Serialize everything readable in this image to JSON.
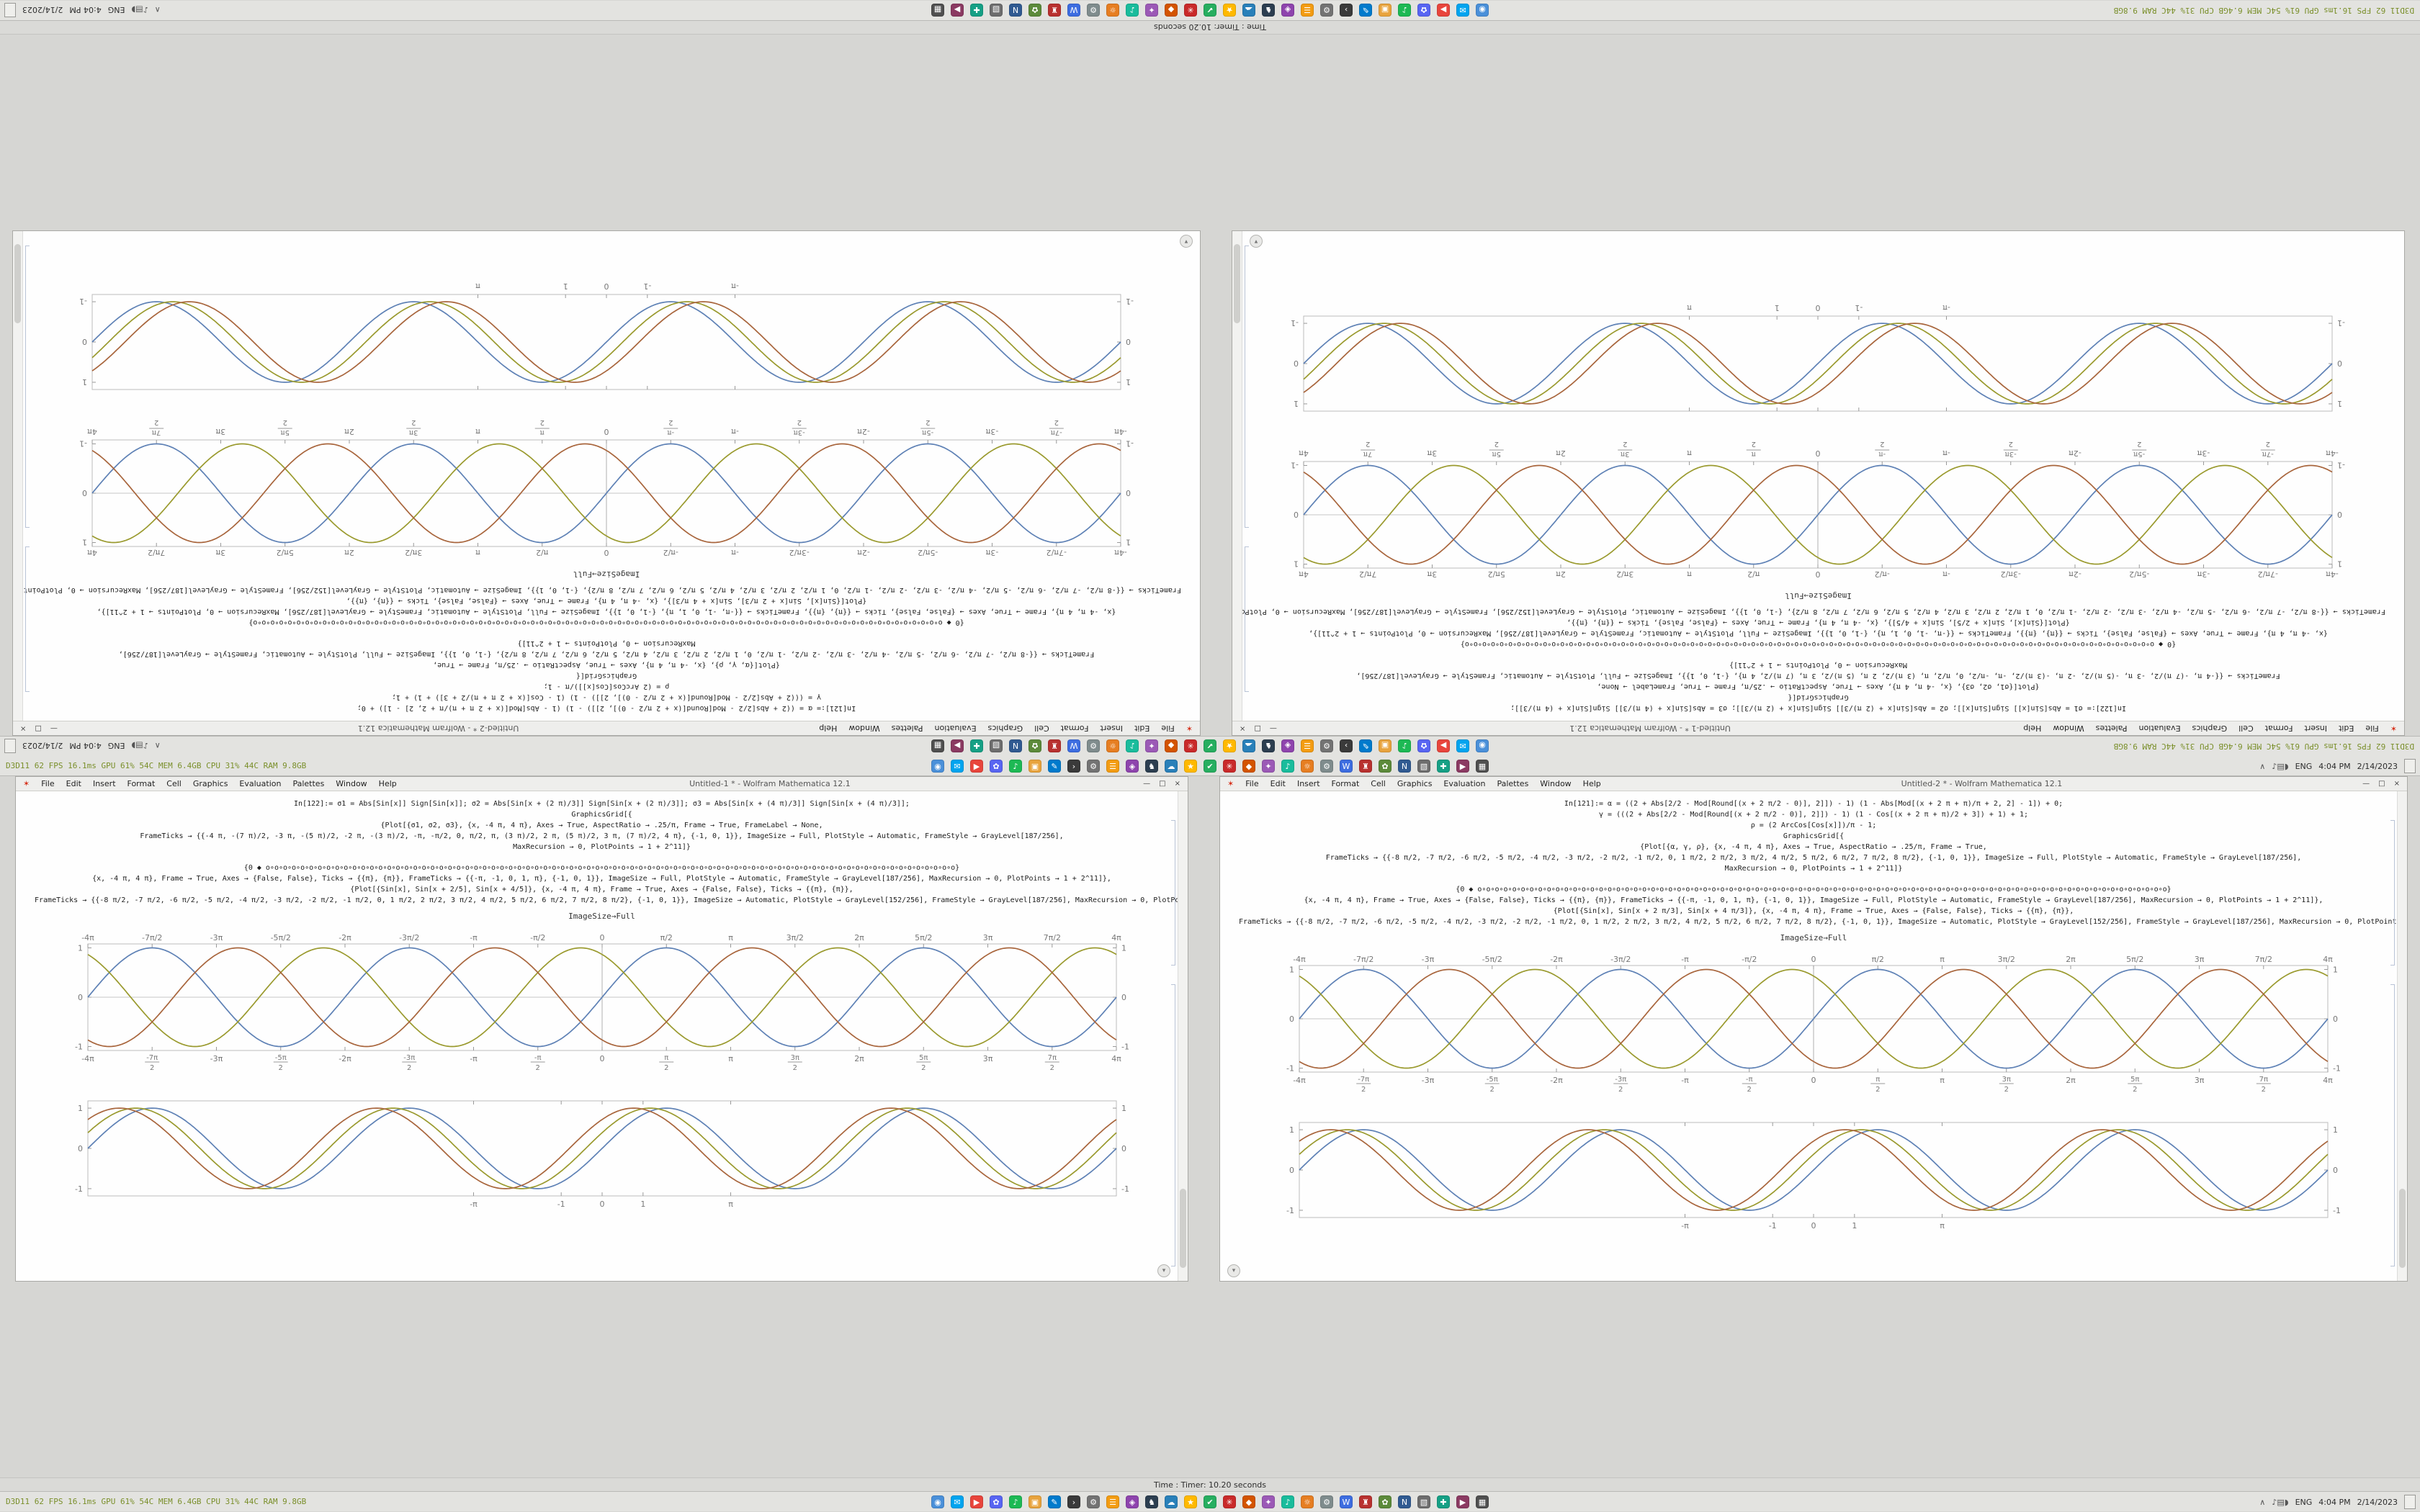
{
  "meta": {
    "app": "Wolfram Mathematica 12.1"
  },
  "bars": {
    "stats": "D3D11 62 FPS 16.1ms GPU 61% 54C MEM 6.4GB CPU 31% 44C RAM 9.8GB",
    "icons": [
      {
        "n": "browser-icon",
        "c": "#4a90d9",
        "g": "◉"
      },
      {
        "n": "mail-icon",
        "c": "#00a4ef",
        "g": "✉"
      },
      {
        "n": "media-icon",
        "c": "#e8453c",
        "g": "▶"
      },
      {
        "n": "chat-icon",
        "c": "#5865f2",
        "g": "✿"
      },
      {
        "n": "music-icon",
        "c": "#1db954",
        "g": "♪"
      },
      {
        "n": "files-icon",
        "c": "#e8a33d",
        "g": "▣"
      },
      {
        "n": "editor-icon",
        "c": "#007acc",
        "g": "✎"
      },
      {
        "n": "terminal-icon",
        "c": "#3a3a3a",
        "g": "›"
      },
      {
        "n": "settings-icon",
        "c": "#737373",
        "g": "⚙"
      },
      {
        "n": "notes-icon",
        "c": "#f39c12",
        "g": "☰"
      },
      {
        "n": "photos-icon",
        "c": "#8e44ad",
        "g": "◈"
      },
      {
        "n": "game-icon",
        "c": "#2c3e50",
        "g": "♞"
      },
      {
        "n": "cloud-icon",
        "c": "#2980b9",
        "g": "☁"
      },
      {
        "n": "star-icon",
        "c": "#ffb900",
        "g": "★"
      },
      {
        "n": "check-icon",
        "c": "#27ae60",
        "g": "✔"
      },
      {
        "n": "recorder-icon",
        "c": "#c92a2a",
        "g": "✳"
      },
      {
        "n": "gem-icon",
        "c": "#d35400",
        "g": "◆"
      },
      {
        "n": "spark-icon",
        "c": "#9b59b6",
        "g": "✦"
      },
      {
        "n": "audio-icon",
        "c": "#1abc9c",
        "g": "♪"
      },
      {
        "n": "sun-icon",
        "c": "#e67e22",
        "g": "☼"
      },
      {
        "n": "gear2-icon",
        "c": "#7f8c8d",
        "g": "⚙"
      },
      {
        "n": "word-icon",
        "c": "#3d6de0",
        "g": "W"
      },
      {
        "n": "rook-icon",
        "c": "#b8312f",
        "g": "♜"
      },
      {
        "n": "leaf-icon",
        "c": "#5c8a3a",
        "g": "✿"
      },
      {
        "n": "nav-icon",
        "c": "#305a91",
        "g": "N"
      },
      {
        "n": "grid-icon",
        "c": "#6d6d6d",
        "g": "▧"
      },
      {
        "n": "plus-icon",
        "c": "#16a085",
        "g": "✚"
      },
      {
        "n": "video-icon",
        "c": "#8b3a62",
        "g": "▶"
      },
      {
        "n": "box-icon",
        "c": "#4f4f4f",
        "g": "▦"
      }
    ],
    "tray": {
      "chevron": "∧",
      "icons": [
        "♪",
        "▤",
        "◗"
      ],
      "lang": "ENG",
      "time": "4:04 PM",
      "date": "2/14/2023"
    }
  },
  "timer_bar": {
    "text": "Time : Timer: 10.20 seconds"
  },
  "chrome": {
    "app_glyph": "✶",
    "menu": [
      "File",
      "Edit",
      "Insert",
      "Format",
      "Cell",
      "Graphics",
      "Evaluation",
      "Palettes",
      "Window",
      "Help"
    ],
    "controls": [
      "—",
      "□",
      "×"
    ],
    "corner_glyph": "▾"
  },
  "windows": {
    "left": {
      "title": "Untitled-1 * - Wolfram Mathematica 12.1",
      "caption": "ImageSize→Full",
      "code1": [
        "In[122]:= σ1 = Abs[Sin[x]] Sign[Sin[x]]; σ2 = Abs[Sin[x + (2 π)/3]] Sign[Sin[x + (2 π)/3]]; σ3 = Abs[Sin[x + (4 π)/3]] Sign[Sin[x + (4 π)/3]];",
        "GraphicsGrid[{",
        "{Plot[{σ1, σ2, σ3}, {x, -4 π, 4 π}, Axes → True, AspectRatio → .25/π, Frame → True, FrameLabel → None,",
        "FrameTicks → {{-4 π, -(7 π)/2, -3 π, -(5 π)/2, -2 π, -(3 π)/2, -π, -π/2, 0, π/2, π, (3 π)/2, 2 π, (5 π)/2, 3 π, (7 π)/2, 4 π}, {-1, 0, 1}}, ImageSize → Full, PlotStyle → Automatic, FrameStyle → GrayLevel[187/256],",
        "MaxRecursion → 0, PlotPoints → 1 + 2^11]}"
      ],
      "code2": [
        "{0 ◆ o∘o∘o∘o∘o∘o∘o∘o∘o∘o∘o∘o∘o∘o∘o∘o∘o∘o∘o∘o∘o∘o∘o∘o∘o∘o∘o∘o∘o∘o∘o∘o∘o∘o∘o∘o∘o∘o∘o∘o∘o∘o∘o∘o∘o∘o∘o∘o∘o∘o∘o∘o∘o∘o∘o∘o∘o∘o∘o∘o∘o∘o∘o∘o∘o∘o∘o∘o∘o∘o∘o∘o∘o∘o∘o∘o∘o∘o∘o∘o}",
        "{x, -4 π, 4 π}, Frame → True, Axes → {False, False}, Ticks → {{π}, {π}}, FrameTicks → {{-π, -1, 0, 1, π}, {-1, 0, 1}}, ImageSize → Full, PlotStyle → Automatic, FrameStyle → GrayLevel[187/256], MaxRecursion → 0, PlotPoints → 1 + 2^11]},",
        "{Plot[{Sin[x], Sin[x + 2/5], Sin[x + 4/5]}, {x, -4 π, 4 π}, Frame → True, Axes → {False, False}, Ticks → {{π}, {π}},",
        "FrameTicks → {{-8 π/2, -7 π/2, -6 π/2, -5 π/2, -4 π/2, -3 π/2, -2 π/2, -1 π/2, 0, 1 π/2, 2 π/2, 3 π/2, 4 π/2, 5 π/2, 6 π/2, 7 π/2, 8 π/2}, {-1, 0, 1}}, ImageSize → Automatic, PlotStyle → GrayLevel[152/256], FrameStyle → GrayLevel[187/256], MaxRecursion → 0, PlotPoints → 1 + 2^11]}]"
      ]
    },
    "right": {
      "title": "Untitled-2 * - Wolfram Mathematica 12.1",
      "caption": "ImageSize→Full",
      "code1": [
        "In[121]:= α = ((2 + Abs[2/2 - Mod[Round[(x + 2 π/2 - 0)], 2]]) - 1) (1 - Abs[Mod[(x + 2 π + π)/π + 2, 2] - 1]) + 0;",
        "γ = (((2 + Abs[2/2 - Mod[Round[(x + 2 π/2 - 0)], 2]]) - 1) (1 - Cos[(x + 2 π + π)/2 + 3]) + 1) + 1;",
        "ρ = (2 ArcCos[Cos[x]])/π - 1;",
        "GraphicsGrid[{",
        "{Plot[{α, γ, ρ}, {x, -4 π, 4 π}, Axes → True, AspectRatio → .25/π, Frame → True,",
        "FrameTicks → {{-8 π/2, -7 π/2, -6 π/2, -5 π/2, -4 π/2, -3 π/2, -2 π/2, -1 π/2, 0, 1 π/2, 2 π/2, 3 π/2, 4 π/2, 5 π/2, 6 π/2, 7 π/2, 8 π/2}, {-1, 0, 1}}, ImageSize → Full, PlotStyle → Automatic, FrameStyle → GrayLevel[187/256],",
        "MaxRecursion → 0, PlotPoints → 1 + 2^11]}"
      ],
      "code2": [
        "{0 ◆ o∘o∘o∘o∘o∘o∘o∘o∘o∘o∘o∘o∘o∘o∘o∘o∘o∘o∘o∘o∘o∘o∘o∘o∘o∘o∘o∘o∘o∘o∘o∘o∘o∘o∘o∘o∘o∘o∘o∘o∘o∘o∘o∘o∘o∘o∘o∘o∘o∘o∘o∘o∘o∘o∘o∘o∘o∘o∘o∘o∘o∘o∘o∘o∘o∘o∘o∘o∘o∘o∘o∘o∘o∘o∘o∘o∘o∘o∘o∘o}",
        "{x, -4 π, 4 π}, Frame → True, Axes → {False, False}, Ticks → {{π}, {π}}, FrameTicks → {{-π, -1, 0, 1, π}, {-1, 0, 1}}, ImageSize → Full, PlotStyle → Automatic, FrameStyle → GrayLevel[187/256], MaxRecursion → 0, PlotPoints → 1 + 2^11]},",
        "{Plot[{Sin[x], Sin[x + 2 π/3], Sin[x + 4 π/3]}, {x, -4 π, 4 π}, Frame → True, Axes → {False, False}, Ticks → {{π}, {π}},",
        "FrameTicks → {{-8 π/2, -7 π/2, -6 π/2, -5 π/2, -4 π/2, -3 π/2, -2 π/2, -1 π/2, 0, 1 π/2, 2 π/2, 3 π/2, 4 π/2, 5 π/2, 6 π/2, 7 π/2, 8 π/2}, {-1, 0, 1}}, ImageSize → Automatic, PlotStyle → GrayLevel[152/256], FrameStyle → GrayLevel[187/256], MaxRecursion → 0, PlotPoints → 1 + 2^11]}]"
      ]
    }
  },
  "chart_data": {
    "braided": {
      "type": "line",
      "title": "",
      "y_formula": "sin(x + phase)",
      "x_range": [
        -12.566,
        12.566
      ],
      "y_max": 1.08,
      "axes": true,
      "ticks_top": true,
      "frac": true,
      "frame_color": "#bcbcbc",
      "series": [
        {
          "name": "α(x)",
          "phase": 0,
          "color": "#5e81b5"
        },
        {
          "name": "γ(x)",
          "phase": 2.0944,
          "color": "#9a9a2e"
        },
        {
          "name": "ρ(x)",
          "phase": 4.1888,
          "color": "#a8653c"
        }
      ],
      "xticks": [
        [
          -12.566,
          "-4π"
        ],
        [
          -10.996,
          "-7π/2"
        ],
        [
          -9.4248,
          "-3π"
        ],
        [
          -7.854,
          "-5π/2"
        ],
        [
          -6.2832,
          "-2π"
        ],
        [
          -4.7124,
          "-3π/2"
        ],
        [
          -3.1416,
          "-π"
        ],
        [
          -1.5708,
          "-π/2"
        ],
        [
          0,
          "0"
        ],
        [
          1.5708,
          "π/2"
        ],
        [
          3.1416,
          "π"
        ],
        [
          4.7124,
          "3π/2"
        ],
        [
          6.2832,
          "2π"
        ],
        [
          7.854,
          "5π/2"
        ],
        [
          9.4248,
          "3π"
        ],
        [
          10.996,
          "7π/2"
        ],
        [
          12.566,
          "4π"
        ]
      ],
      "yticks": [
        [
          1,
          "1"
        ],
        [
          0,
          "0"
        ],
        [
          -1,
          "-1"
        ]
      ]
    },
    "sine": {
      "type": "line",
      "title": "",
      "y_formula": "sin(x + phase)",
      "x_range": [
        -12.566,
        12.566
      ],
      "y_max": 1.18,
      "axes": false,
      "ticks_top": false,
      "frac": false,
      "frame_color": "#bcbcbc",
      "series": [
        {
          "name": "Sin[x]",
          "phase": 0,
          "color": "#5e81b5"
        },
        {
          "name": "Sin[x + 2/5]",
          "phase": 0.4,
          "color": "#9a9a2e"
        },
        {
          "name": "Sin[x + 4/5]",
          "phase": 0.8,
          "color": "#a8653c"
        }
      ],
      "xticks": [
        [
          -3.1416,
          "-π"
        ],
        [
          -1,
          "-1"
        ],
        [
          0,
          "0"
        ],
        [
          1,
          "1"
        ],
        [
          3.1416,
          "π"
        ]
      ],
      "yticks": [
        [
          1,
          "1"
        ],
        [
          0,
          "0"
        ],
        [
          -1,
          "-1"
        ]
      ]
    }
  }
}
